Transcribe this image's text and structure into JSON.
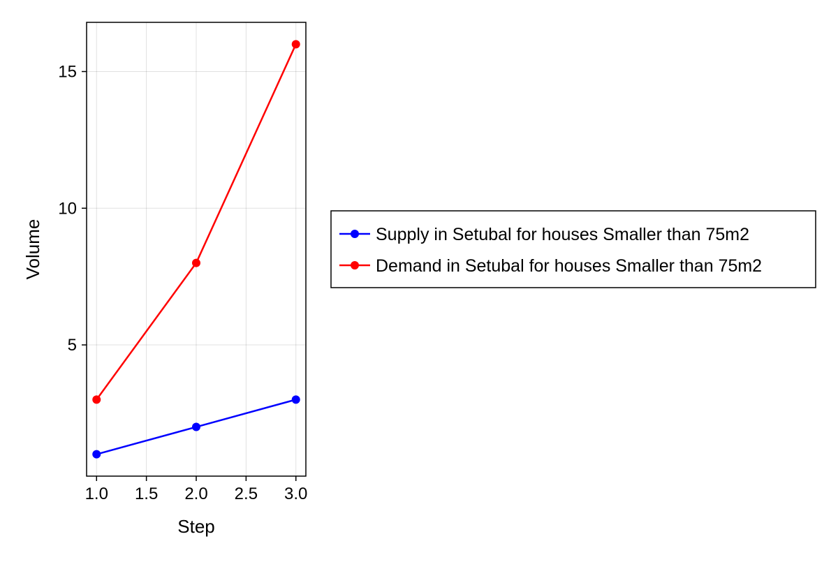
{
  "chart_data": {
    "type": "line",
    "title": "",
    "xlabel": "Step",
    "ylabel": "Volume",
    "x": [
      1.0,
      2.0,
      3.0
    ],
    "xlim": [
      0.9,
      3.1
    ],
    "ylim": [
      0.2,
      16.8
    ],
    "xticks": [
      1.0,
      1.5,
      2.0,
      2.5,
      3.0
    ],
    "xtick_labels": [
      "1.0",
      "1.5",
      "2.0",
      "2.5",
      "3.0"
    ],
    "yticks": [
      5,
      10,
      15
    ],
    "ytick_labels": [
      "5",
      "10",
      "15"
    ],
    "grid": true,
    "legend_position": "right",
    "series": [
      {
        "name": "Supply in Setubal for houses Smaller than 75m2",
        "color": "#0000ff",
        "values": [
          1,
          2,
          3
        ],
        "marker": "circle"
      },
      {
        "name": "Demand in Setubal for houses Smaller than 75m2",
        "color": "#ff0000",
        "values": [
          3,
          8,
          16
        ],
        "marker": "circle"
      }
    ]
  }
}
